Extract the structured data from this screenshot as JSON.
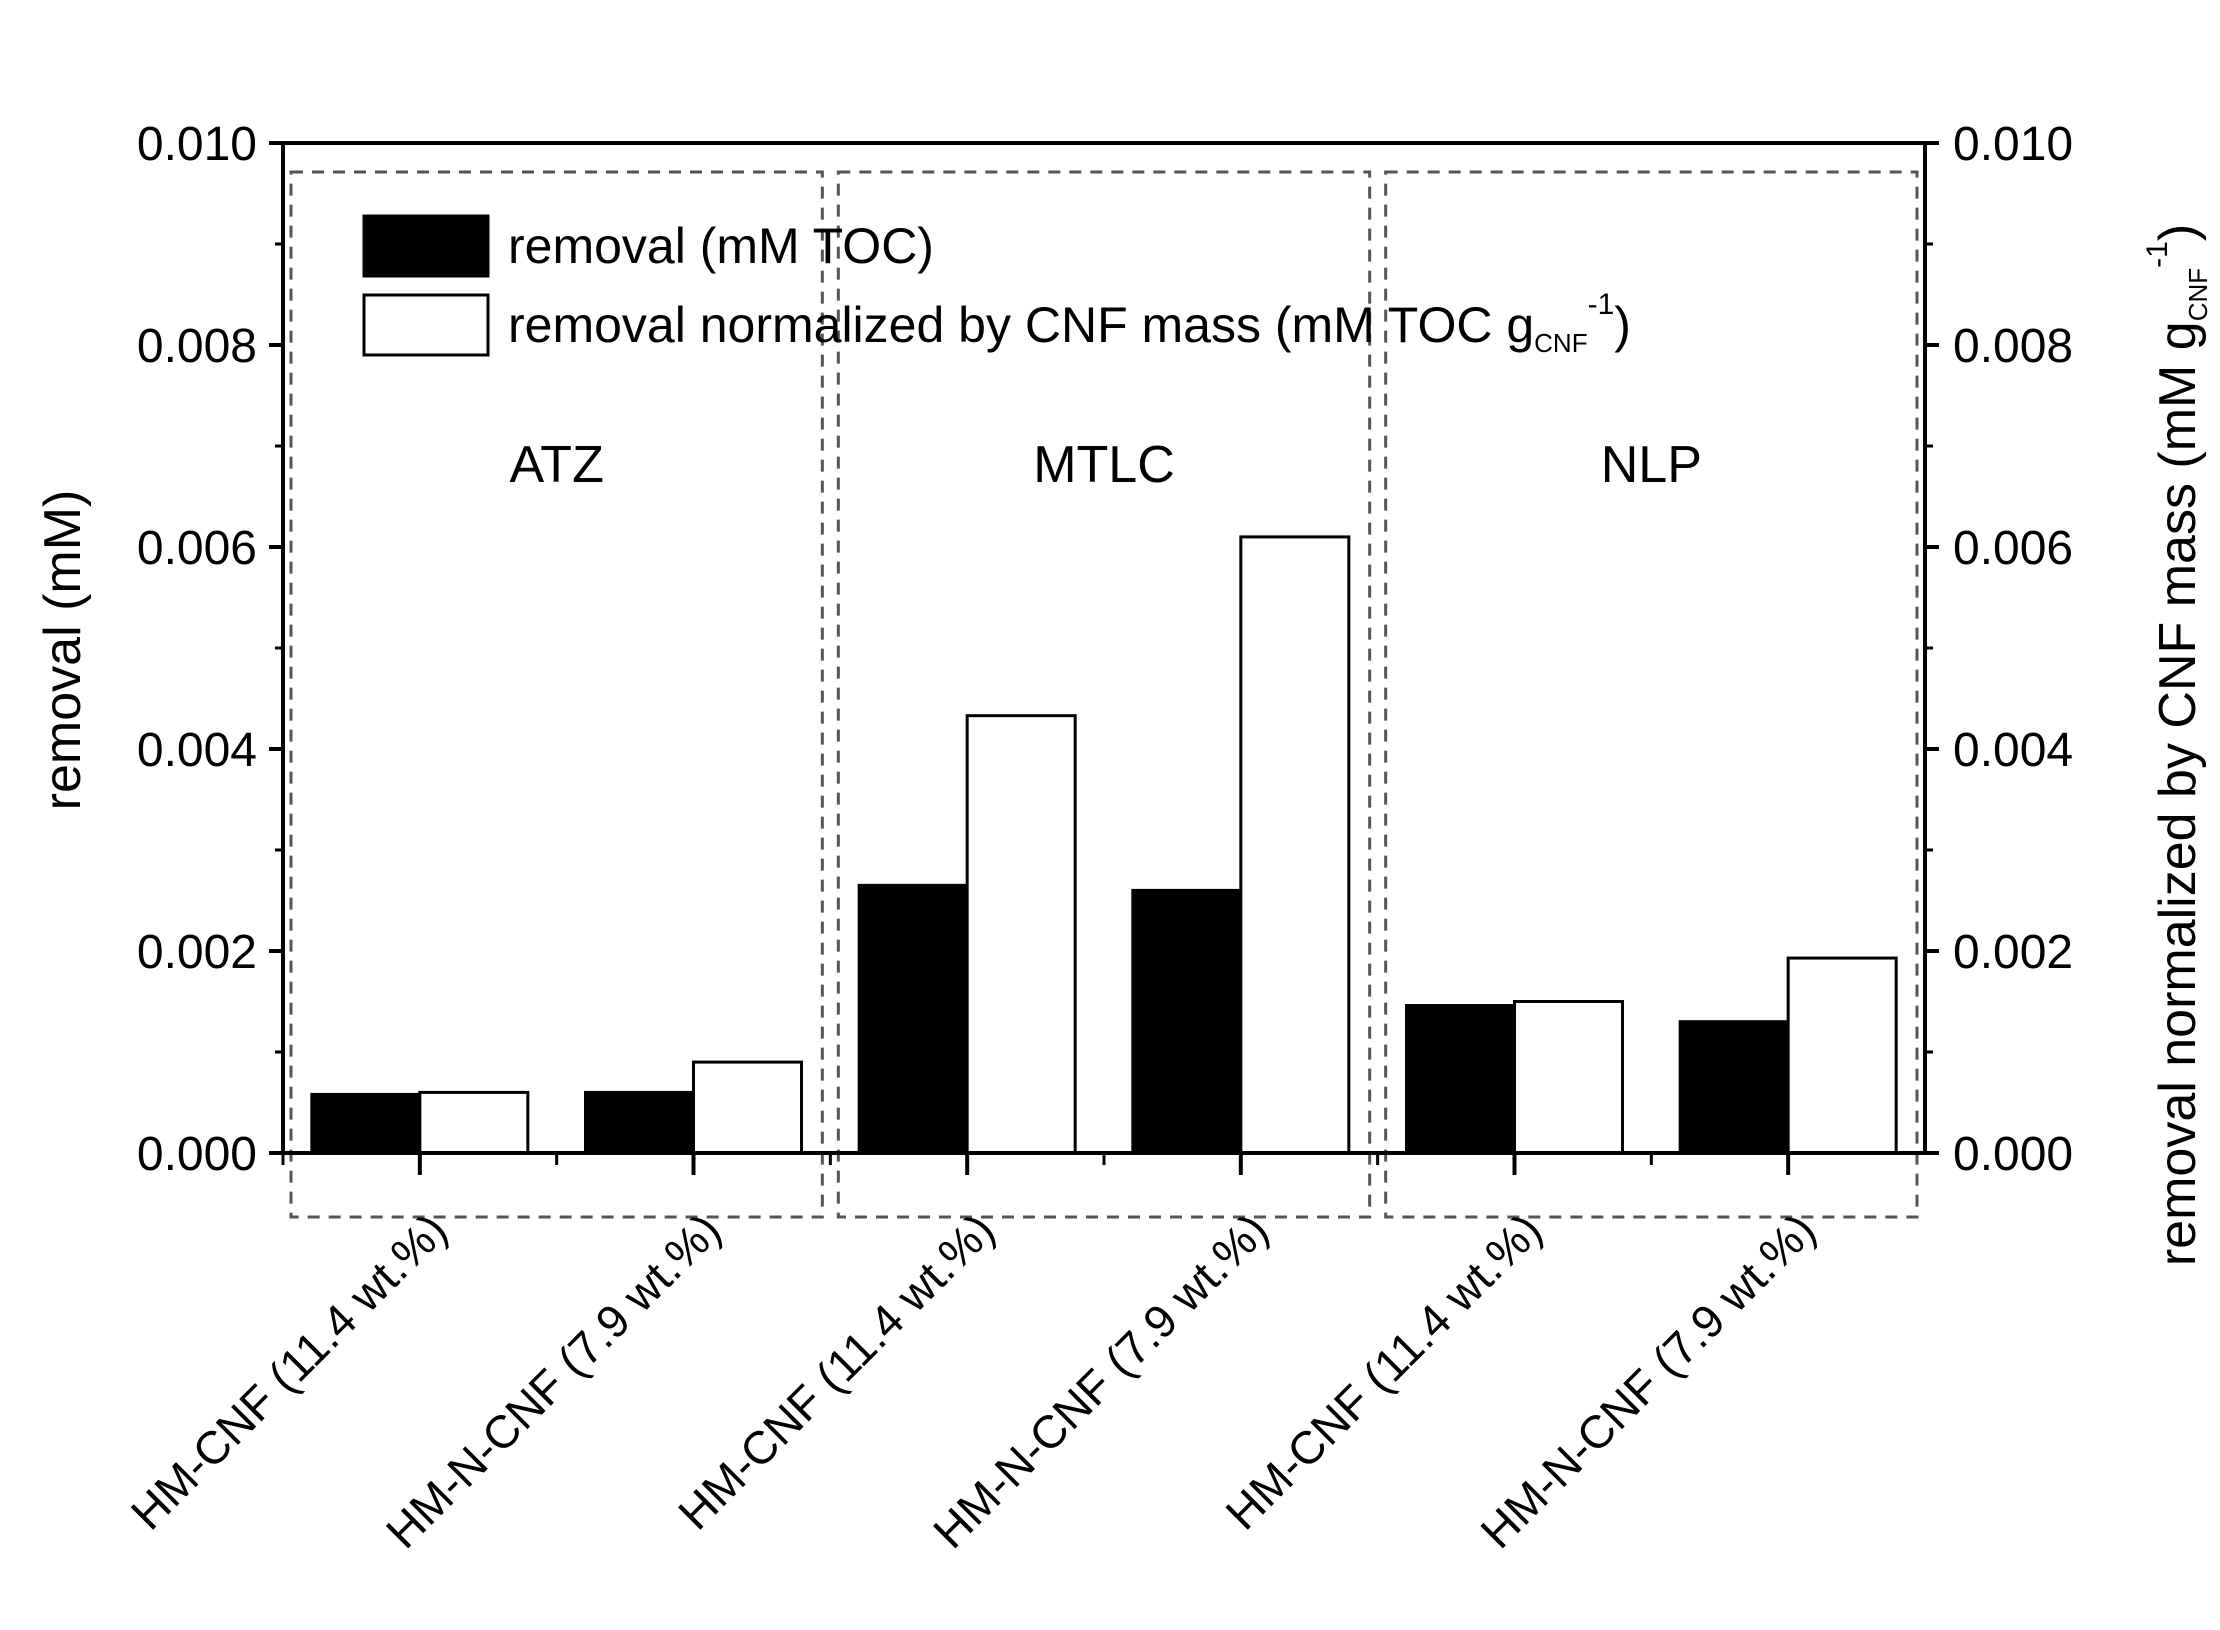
{
  "chart_data": {
    "type": "bar",
    "categories": [
      "HM-CNF (11.4 wt.%)",
      "HM-N-CNF (7.9 wt.%)",
      "HM-CNF (11.4 wt.%)",
      "HM-N-CNF (7.9 wt.%)",
      "HM-CNF (11.4 wt.%)",
      "HM-N-CNF (7.9 wt.%)"
    ],
    "groups": [
      {
        "label": "ATZ",
        "categories": [
          0,
          1
        ]
      },
      {
        "label": "MTLC",
        "categories": [
          2,
          3
        ]
      },
      {
        "label": "NLP",
        "categories": [
          4,
          5
        ]
      }
    ],
    "series": [
      {
        "name": "removal (mM TOC)",
        "axis": "left",
        "color": "#000000",
        "values": [
          0.00058,
          0.0006,
          0.00265,
          0.0026,
          0.00146,
          0.0013
        ]
      },
      {
        "name": "removal normalized by CNF mass",
        "axis": "right",
        "color": "#ffffff",
        "values": [
          0.0006,
          0.0009,
          0.00433,
          0.0061,
          0.0015,
          0.00193
        ]
      }
    ],
    "legend": [
      {
        "label": "removal (mM TOC)"
      },
      {
        "label_main": "removal normalized by CNF mass (mM TOC g",
        "label_sub": "CNF",
        "label_sup": "-1",
        "label_close": ")"
      }
    ],
    "ylabel": "removal (mM)",
    "ylabel_right_main": "removal normalized by CNF mass (mM g",
    "ylabel_right_sub": "CNF",
    "ylabel_right_sup": "-1",
    "ylabel_right_close": ")",
    "ylim": [
      0,
      0.01
    ],
    "yticks": [
      "0.000",
      "0.002",
      "0.004",
      "0.006",
      "0.008",
      "0.010"
    ],
    "legend_position": "top-left"
  }
}
